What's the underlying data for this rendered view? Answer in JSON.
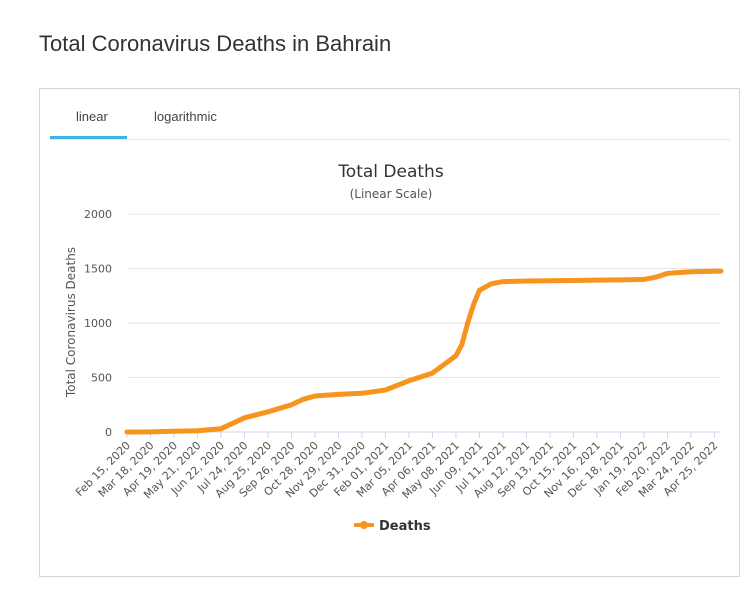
{
  "page": {
    "title": "Total Coronavirus Deaths in Bahrain"
  },
  "tabs": [
    {
      "label": "linear",
      "active": true
    },
    {
      "label": "logarithmic",
      "active": false
    }
  ],
  "colors": {
    "series": "#f7941d",
    "tab_accent": "#3fb3e0",
    "grid": "#e6e6e6"
  },
  "chart_data": {
    "type": "line",
    "title": "Total Deaths",
    "subtitle": "(Linear Scale)",
    "ylabel": "Total Coronavirus Deaths",
    "ylim": [
      0,
      2000
    ],
    "yticks": [
      0,
      500,
      1000,
      1500,
      2000
    ],
    "grid": true,
    "legend": "bottom-center",
    "xticks": [
      "Feb 15, 2020",
      "Mar 18, 2020",
      "Apr 19, 2020",
      "May 21, 2020",
      "Jun 22, 2020",
      "Jul 24, 2020",
      "Aug 25, 2020",
      "Sep 26, 2020",
      "Oct 28, 2020",
      "Nov 29, 2020",
      "Dec 31, 2020",
      "Feb 01, 2021",
      "Mar 05, 2021",
      "Apr 06, 2021",
      "May 08, 2021",
      "Jun 09, 2021",
      "Jul 11, 2021",
      "Aug 12, 2021",
      "Sep 13, 2021",
      "Oct 15, 2021",
      "Nov 16, 2021",
      "Dec 18, 2021",
      "Jan 19, 2022",
      "Feb 20, 2022",
      "Mar 24, 2022",
      "Apr 25, 2022"
    ],
    "series": [
      {
        "name": "Deaths",
        "color": "#f7941d",
        "points": [
          [
            "Feb 15, 2020",
            0
          ],
          [
            "Mar 18, 2020",
            1
          ],
          [
            "Apr 19, 2020",
            7
          ],
          [
            "May 21, 2020",
            12
          ],
          [
            "Jun 22, 2020",
            30
          ],
          [
            "Jul 08, 2020",
            80
          ],
          [
            "Jul 24, 2020",
            130
          ],
          [
            "Aug 25, 2020",
            185
          ],
          [
            "Sep 26, 2020",
            250
          ],
          [
            "Oct 12, 2020",
            300
          ],
          [
            "Oct 28, 2020",
            330
          ],
          [
            "Nov 29, 2020",
            345
          ],
          [
            "Dec 31, 2020",
            355
          ],
          [
            "Feb 01, 2021",
            385
          ],
          [
            "Mar 05, 2021",
            470
          ],
          [
            "Apr 06, 2021",
            540
          ],
          [
            "Apr 22, 2021",
            620
          ],
          [
            "May 08, 2021",
            700
          ],
          [
            "May 16, 2021",
            800
          ],
          [
            "May 24, 2021",
            1000
          ],
          [
            "Jun 01, 2021",
            1170
          ],
          [
            "Jun 09, 2021",
            1300
          ],
          [
            "Jun 25, 2021",
            1360
          ],
          [
            "Jul 11, 2021",
            1380
          ],
          [
            "Aug 12, 2021",
            1385
          ],
          [
            "Sep 13, 2021",
            1388
          ],
          [
            "Oct 15, 2021",
            1390
          ],
          [
            "Nov 16, 2021",
            1394
          ],
          [
            "Dec 18, 2021",
            1395
          ],
          [
            "Jan 19, 2022",
            1400
          ],
          [
            "Feb 04, 2022",
            1420
          ],
          [
            "Feb 20, 2022",
            1455
          ],
          [
            "Mar 24, 2022",
            1470
          ],
          [
            "Apr 25, 2022",
            1475
          ],
          [
            "May 04, 2022",
            1476
          ]
        ]
      }
    ]
  }
}
